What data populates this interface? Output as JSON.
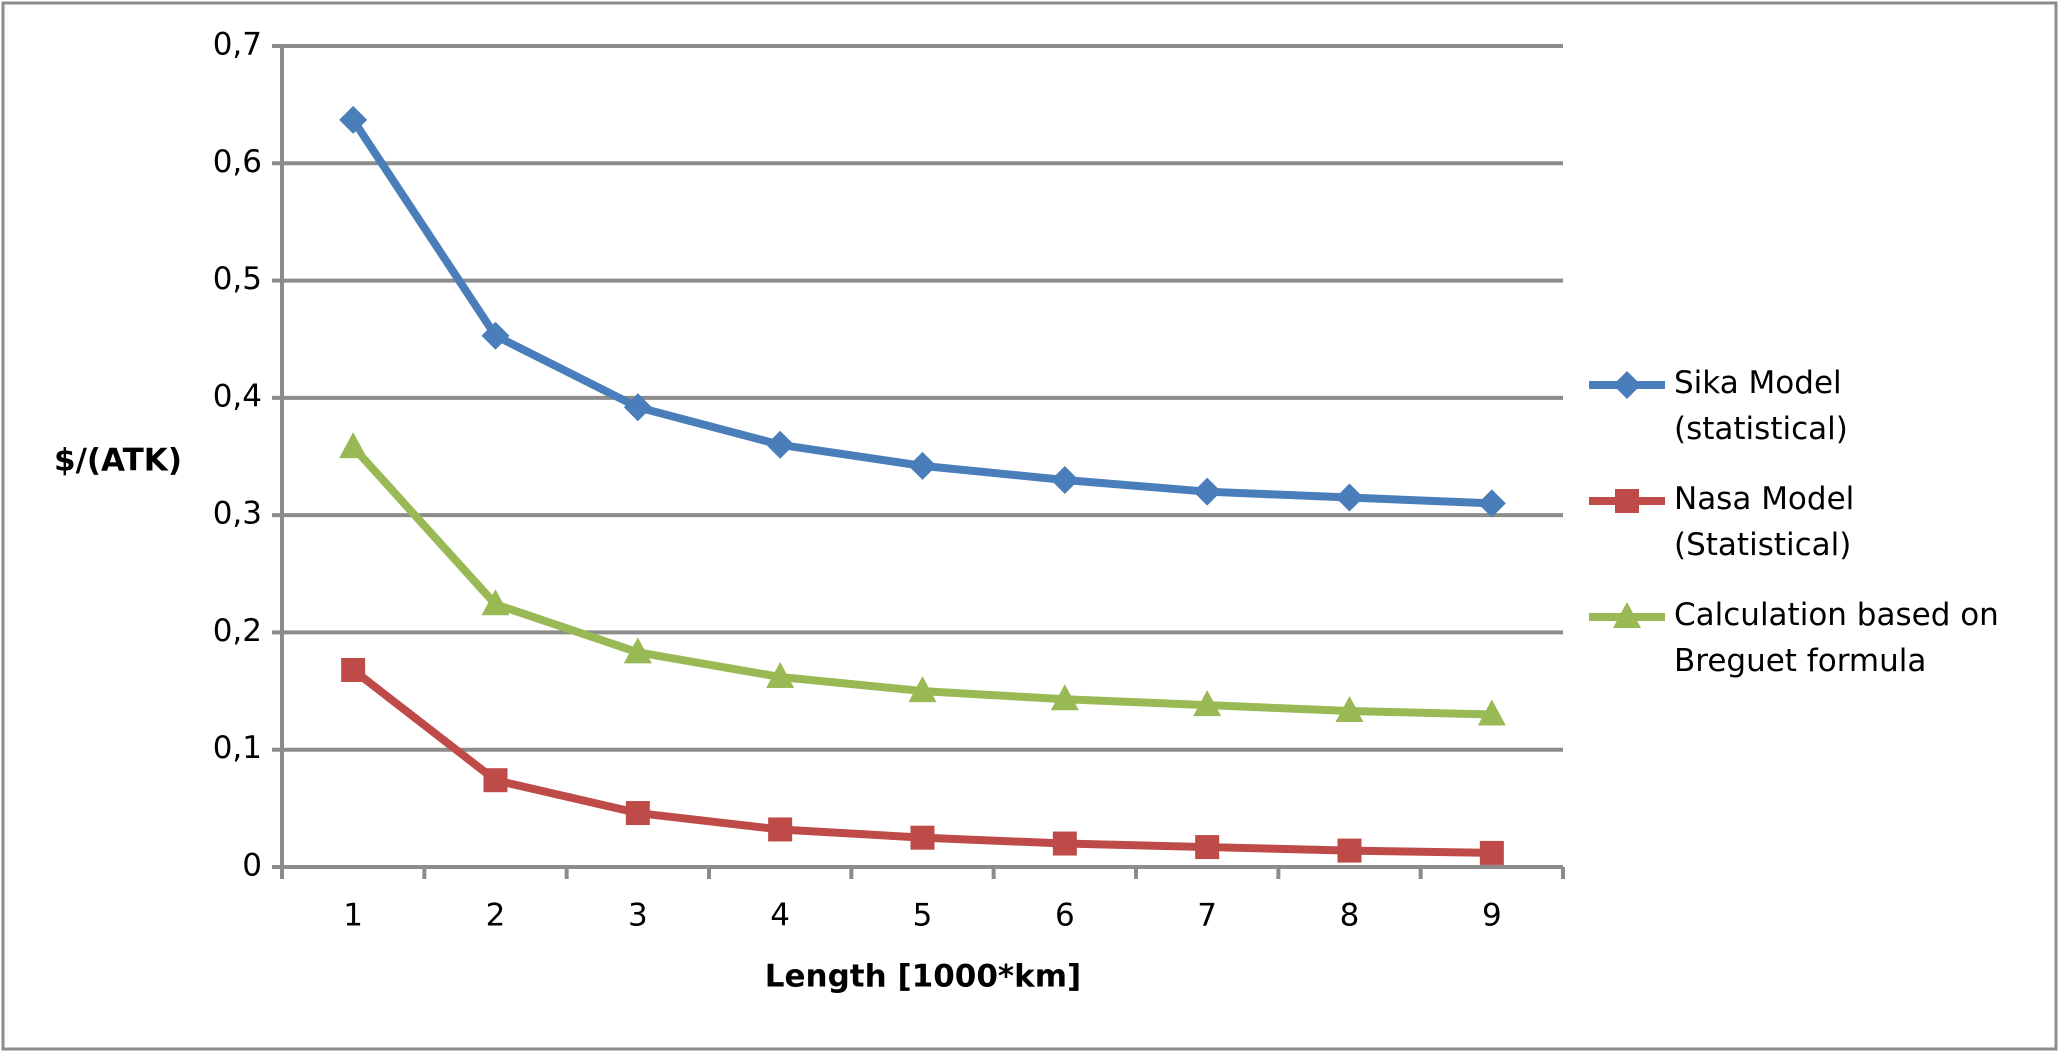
{
  "chart_data": {
    "type": "line",
    "categories": [
      "1",
      "2",
      "3",
      "4",
      "5",
      "6",
      "7",
      "8",
      "9"
    ],
    "x_label": "Length [1000*km]",
    "y_label": "$/(ATK)",
    "ylim": [
      0,
      0.7
    ],
    "yticks": [
      0,
      {
        "value": 0.1,
        "label": "0,1"
      },
      {
        "value": 0.2,
        "label": "0,2"
      },
      {
        "value": 0.3,
        "label": "0,3"
      },
      {
        "value": 0.4,
        "label": "0,4"
      },
      {
        "value": 0.5,
        "label": "0,5"
      },
      {
        "value": 0.6,
        "label": "0,6"
      },
      {
        "value": 0.7,
        "label": "0,7"
      }
    ],
    "grid": true,
    "legend": "right",
    "series": [
      {
        "name": "Sika Model (statistical)",
        "color": "#4a7ebb",
        "marker": "diamond",
        "values": [
          0.637,
          0.453,
          0.392,
          0.36,
          0.342,
          0.33,
          0.32,
          0.315,
          0.31
        ]
      },
      {
        "name": "Nasa Model (Statistical)",
        "color": "#be4b48",
        "marker": "square",
        "values": [
          0.168,
          0.074,
          0.046,
          0.032,
          0.025,
          0.02,
          0.017,
          0.014,
          0.012
        ]
      },
      {
        "name": "Calculation based on Breguet formula",
        "color": "#98b954",
        "marker": "triangle",
        "values": [
          0.358,
          0.224,
          0.183,
          0.162,
          0.15,
          0.143,
          0.138,
          0.133,
          0.13
        ]
      }
    ]
  }
}
